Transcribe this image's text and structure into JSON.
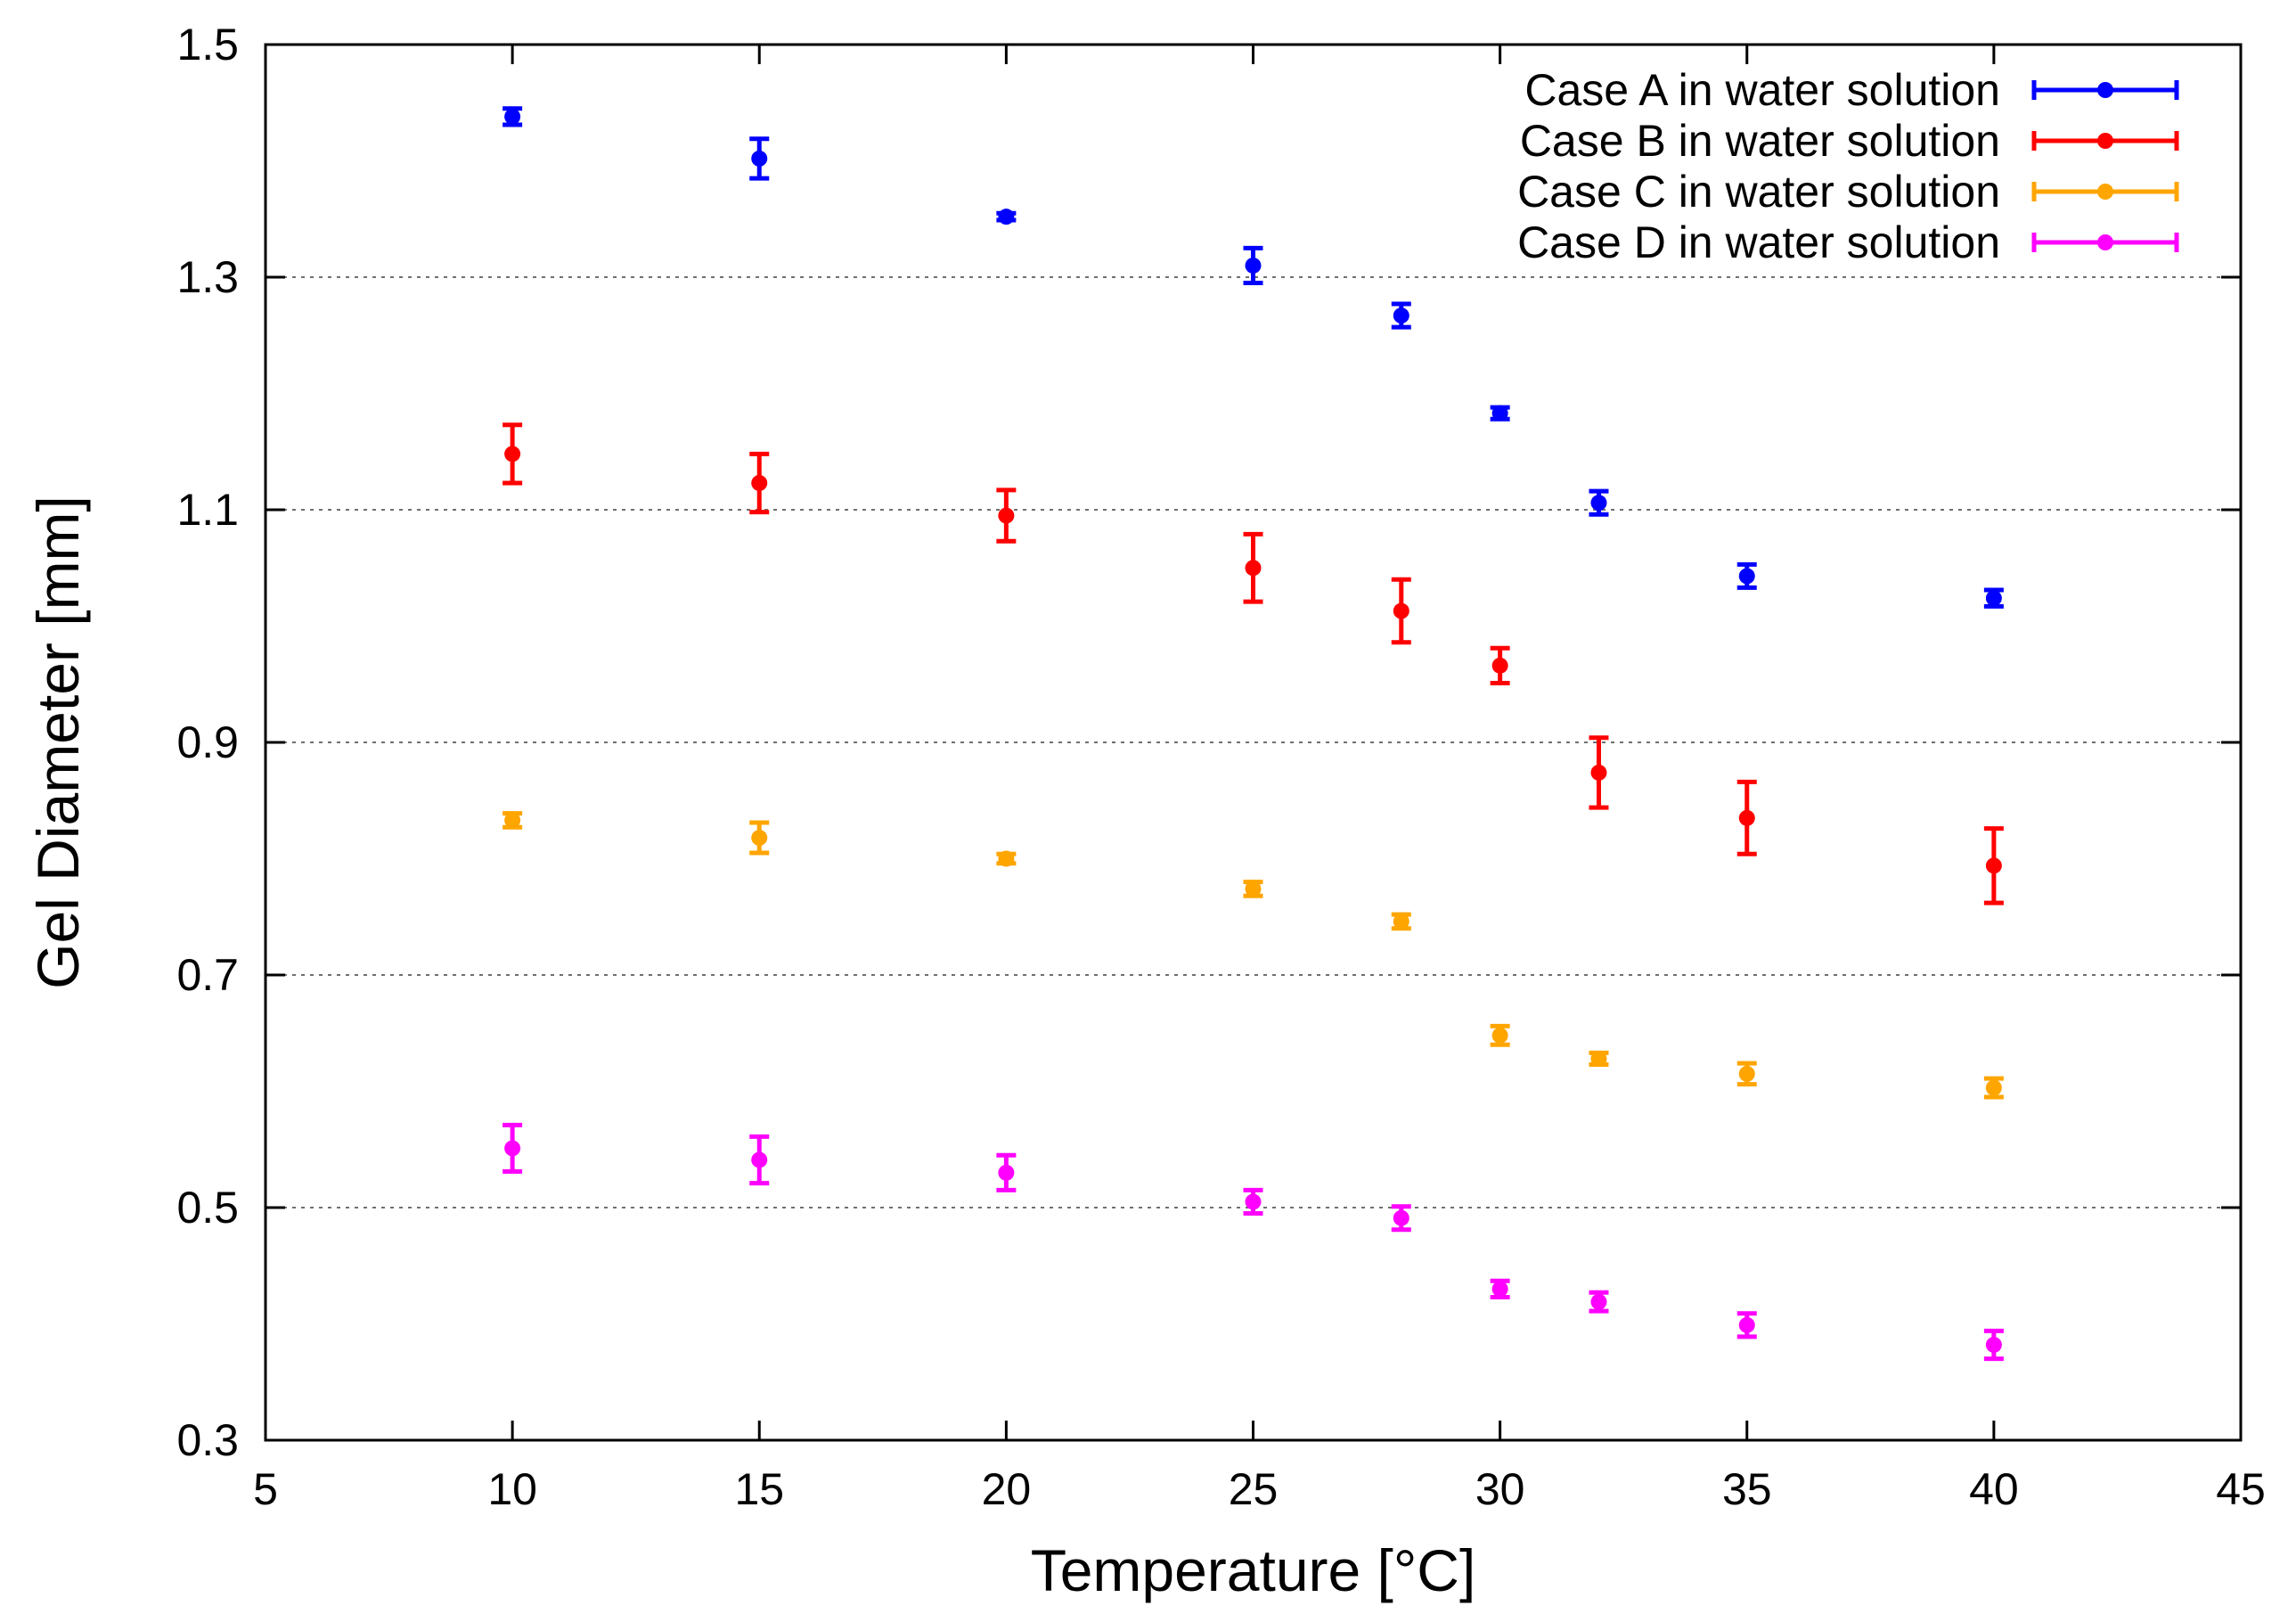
{
  "chart_data": {
    "type": "scatter",
    "title": "",
    "xlabel": "Temperature [°C]",
    "ylabel": "Gel Diameter [mm]",
    "xlim": [
      5,
      45
    ],
    "ylim": [
      0.3,
      1.5
    ],
    "xticks": [
      5,
      10,
      15,
      20,
      25,
      30,
      35,
      40,
      45
    ],
    "yticks": [
      0.3,
      0.5,
      0.7,
      0.9,
      1.1,
      1.3,
      1.5
    ],
    "ytick_labels": [
      "0.3",
      "0.5",
      "0.7",
      "0.9",
      "1.1",
      "1.3",
      "1.5"
    ],
    "grid": "horizontal dotted lines at major y ticks",
    "legend_position": "top-right",
    "x": [
      10,
      15,
      20,
      25,
      28,
      30,
      32,
      35,
      40
    ],
    "series": [
      {
        "name": "Case A in water solution",
        "color": "#0000ff",
        "values": [
          1.438,
          1.402,
          1.352,
          1.31,
          1.267,
          1.183,
          1.106,
          1.043,
          1.024
        ],
        "errors": [
          0.007,
          0.017,
          0.003,
          0.015,
          0.01,
          0.005,
          0.01,
          0.01,
          0.007
        ]
      },
      {
        "name": "Case B in water solution",
        "color": "#ff0000",
        "values": [
          1.148,
          1.123,
          1.095,
          1.05,
          1.013,
          0.966,
          0.874,
          0.835,
          0.794
        ],
        "errors": [
          0.025,
          0.025,
          0.022,
          0.029,
          0.027,
          0.015,
          0.03,
          0.031,
          0.032
        ]
      },
      {
        "name": "Case C in water solution",
        "color": "#ffa500",
        "values": [
          0.833,
          0.818,
          0.8,
          0.774,
          0.746,
          0.648,
          0.628,
          0.615,
          0.603
        ],
        "errors": [
          0.006,
          0.013,
          0.004,
          0.006,
          0.006,
          0.008,
          0.005,
          0.009,
          0.008
        ]
      },
      {
        "name": "Case D in water solution",
        "color": "#ff00ff",
        "values": [
          0.551,
          0.541,
          0.53,
          0.505,
          0.491,
          0.43,
          0.419,
          0.399,
          0.382
        ],
        "errors": [
          0.02,
          0.02,
          0.015,
          0.01,
          0.01,
          0.007,
          0.008,
          0.01,
          0.012
        ]
      }
    ]
  }
}
